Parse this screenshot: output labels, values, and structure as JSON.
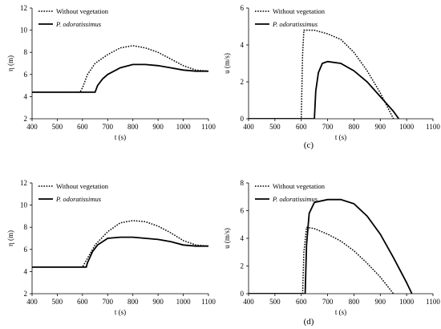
{
  "chart_data": [
    {
      "type": "line",
      "xlabel": "t (s)",
      "ylabel": "η (m)",
      "xlim": [
        400,
        1100
      ],
      "ylim": [
        2,
        12
      ],
      "xticks": [
        "400",
        "500",
        "600",
        "700",
        "800",
        "900",
        "1000",
        "1100"
      ],
      "yticks": [
        "2",
        "4",
        "6",
        "8",
        "10",
        "12"
      ],
      "legend_position": "top-left",
      "series": [
        {
          "name": "Without vegetation",
          "style": "dotted",
          "x": [
            400,
            590,
            600,
            620,
            650,
            700,
            750,
            800,
            850,
            900,
            950,
            1000,
            1050,
            1100
          ],
          "y": [
            4.4,
            4.4,
            4.8,
            6.0,
            7.0,
            7.8,
            8.4,
            8.6,
            8.4,
            8.0,
            7.4,
            6.8,
            6.4,
            6.3
          ]
        },
        {
          "name": "P. odoratissimus",
          "style": "solid",
          "x": [
            400,
            650,
            660,
            680,
            700,
            750,
            800,
            850,
            900,
            950,
            1000,
            1050,
            1100
          ],
          "y": [
            4.4,
            4.4,
            5.0,
            5.6,
            6.0,
            6.6,
            6.9,
            6.9,
            6.8,
            6.6,
            6.4,
            6.3,
            6.3
          ]
        }
      ]
    },
    {
      "type": "line",
      "xlabel": "t (s)",
      "ylabel": "u (m/s)",
      "xlim": [
        400,
        1100
      ],
      "ylim": [
        0,
        6
      ],
      "xticks": [
        "400",
        "500",
        "600",
        "700",
        "800",
        "900",
        "1000",
        "1100"
      ],
      "yticks": [
        "0",
        "2",
        "4",
        "6"
      ],
      "panel_label": "(c)",
      "legend_position": "top-left",
      "series": [
        {
          "name": "Without vegetation",
          "style": "dotted",
          "x": [
            400,
            600,
            605,
            610,
            650,
            700,
            750,
            800,
            850,
            900,
            950
          ],
          "y": [
            0,
            0,
            3.5,
            4.8,
            4.8,
            4.6,
            4.3,
            3.6,
            2.6,
            1.4,
            0
          ]
        },
        {
          "name": "P. odoratissimus",
          "style": "solid",
          "x": [
            400,
            650,
            655,
            665,
            680,
            700,
            750,
            800,
            850,
            900,
            950,
            970
          ],
          "y": [
            0,
            0,
            1.5,
            2.5,
            3.0,
            3.1,
            3.0,
            2.6,
            2.0,
            1.2,
            0.4,
            0
          ]
        }
      ]
    },
    {
      "type": "line",
      "xlabel": "t (s)",
      "ylabel": "η (m)",
      "xlim": [
        400,
        1100
      ],
      "ylim": [
        2,
        12
      ],
      "xticks": [
        "400",
        "500",
        "600",
        "700",
        "800",
        "900",
        "1000",
        "1100"
      ],
      "yticks": [
        "2",
        "4",
        "6",
        "8",
        "10",
        "12"
      ],
      "legend_position": "top-left",
      "series": [
        {
          "name": "Without vegetation",
          "style": "dotted",
          "x": [
            400,
            600,
            610,
            630,
            650,
            700,
            750,
            800,
            850,
            900,
            950,
            1000,
            1050,
            1100
          ],
          "y": [
            4.4,
            4.4,
            4.8,
            5.6,
            6.4,
            7.6,
            8.4,
            8.6,
            8.5,
            8.1,
            7.5,
            6.8,
            6.4,
            6.3
          ]
        },
        {
          "name": "P. odoratissimus",
          "style": "solid",
          "x": [
            400,
            615,
            620,
            640,
            660,
            700,
            750,
            800,
            850,
            900,
            950,
            1000,
            1050,
            1100
          ],
          "y": [
            4.4,
            4.4,
            4.8,
            5.8,
            6.4,
            7.0,
            7.1,
            7.1,
            7.0,
            6.9,
            6.7,
            6.4,
            6.3,
            6.3
          ]
        }
      ]
    },
    {
      "type": "line",
      "xlabel": "t (s)",
      "ylabel": "u (m/s)",
      "xlim": [
        400,
        1100
      ],
      "ylim": [
        0,
        8
      ],
      "xticks": [
        "400",
        "500",
        "600",
        "700",
        "800",
        "900",
        "1000",
        "1100"
      ],
      "yticks": [
        "0",
        "2",
        "4",
        "6",
        "8"
      ],
      "panel_label": "(d)",
      "legend_position": "top-left",
      "series": [
        {
          "name": "Without vegetation",
          "style": "dotted",
          "x": [
            400,
            605,
            610,
            620,
            650,
            700,
            750,
            800,
            850,
            900,
            950
          ],
          "y": [
            0,
            0,
            3.0,
            4.8,
            4.7,
            4.3,
            3.8,
            3.1,
            2.2,
            1.2,
            0
          ]
        },
        {
          "name": "P. odoratissimus",
          "style": "solid",
          "x": [
            400,
            615,
            620,
            630,
            650,
            700,
            750,
            800,
            850,
            900,
            950,
            1000,
            1020
          ],
          "y": [
            0,
            0,
            3.5,
            5.8,
            6.6,
            6.8,
            6.8,
            6.5,
            5.6,
            4.3,
            2.6,
            0.8,
            0
          ]
        }
      ]
    }
  ]
}
